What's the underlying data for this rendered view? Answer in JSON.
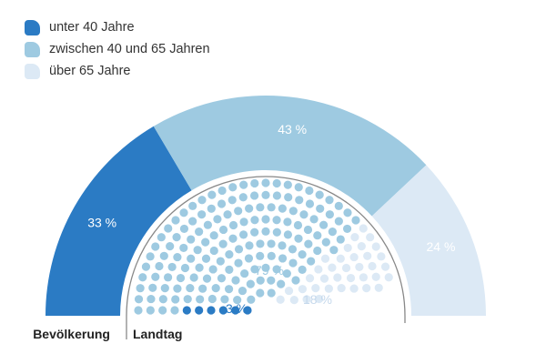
{
  "chart_data": {
    "type": "semicircle-donut",
    "colors": [
      "#2b7bc4",
      "#9ecae1",
      "#dce9f5"
    ],
    "legend": [
      {
        "label": "unter 40 Jahre"
      },
      {
        "label": "zwischen 40 und 65 Jahren"
      },
      {
        "label": "über 65 Jahre"
      }
    ],
    "outer": {
      "name": "Bevölkerung",
      "values": [
        33,
        43,
        24
      ],
      "labels": [
        "33 %",
        "43 %",
        "24 %"
      ]
    },
    "inner": {
      "name": "Landtag",
      "values": [
        3,
        79,
        18
      ],
      "labels": [
        "3 %",
        "79 %",
        "18 %"
      ],
      "seat_counts": [
        6,
        156,
        36
      ]
    }
  }
}
